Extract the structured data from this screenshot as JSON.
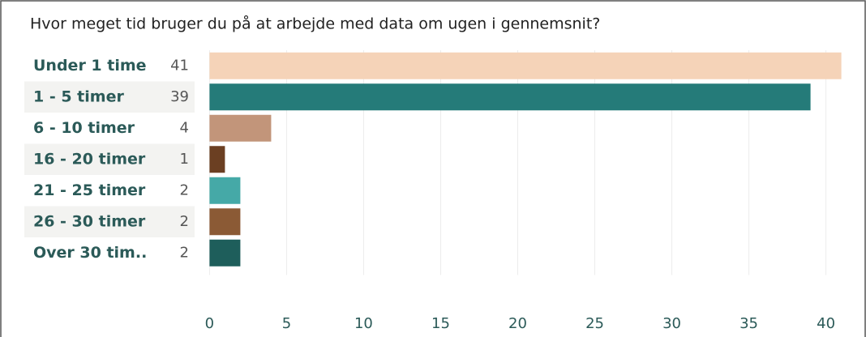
{
  "chart_data": {
    "type": "bar",
    "orientation": "horizontal",
    "title": "Hvor meget tid bruger du på at arbejde med data om ugen i gennemsnit?",
    "categories": [
      "Under 1 time",
      "1 - 5 timer",
      "6 - 10 timer",
      "16 - 20 timer",
      "21 - 25 timer",
      "26 - 30 timer",
      "Over 30 tim.."
    ],
    "values": [
      41,
      39,
      4,
      1,
      2,
      2,
      2
    ],
    "colors": [
      "#f5d3b8",
      "#257b79",
      "#c2957a",
      "#6b3f22",
      "#45a9a7",
      "#8b5a35",
      "#1e5e5b"
    ],
    "xlim": [
      -0.6,
      41.6
    ],
    "xticks": [
      0,
      5,
      10,
      15,
      20,
      25,
      30,
      35,
      40
    ],
    "grid": true
  }
}
